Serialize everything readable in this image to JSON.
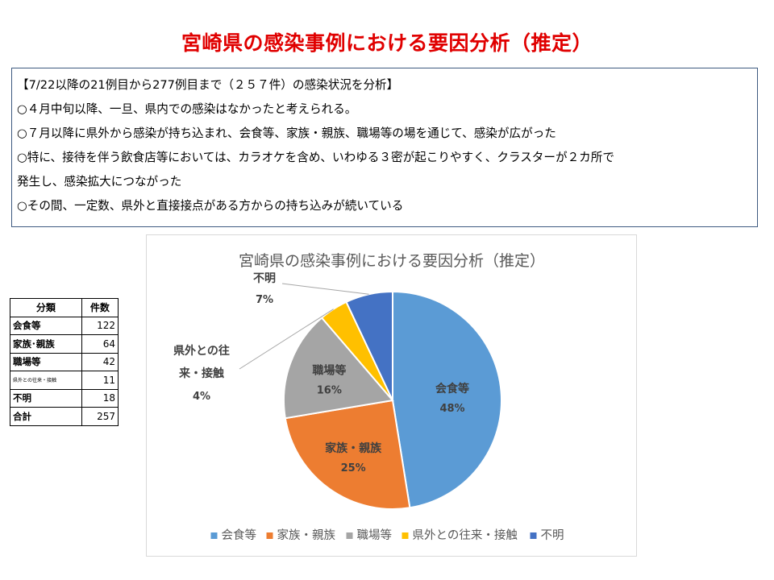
{
  "slide": {
    "title": "宮崎県の感染事例における要因分析（推定）"
  },
  "summary": {
    "lines": [
      "【7/22以降の21例目から277例目まで（２５７件）の感染状況を分析】",
      "○４月中旬以降、一旦、県内での感染はなかったと考えられる。",
      "○７月以降に県外から感染が持ち込まれ、会食等、家族・親族、職場等の場を通じて、感染が広がった",
      "○特に、接待を伴う飲食店等においては、カラオケを含め、いわゆる３密が起こりやすく、クラスターが２カ所で",
      "発生し、感染拡大につながった",
      "○その間、一定数、県外と直接接点がある方からの持ち込みが続いている"
    ]
  },
  "table": {
    "headers": [
      "分類",
      "件数"
    ],
    "rows": [
      {
        "category": "会食等",
        "count": "122"
      },
      {
        "category": "家族･親族",
        "count": "64"
      },
      {
        "category": "職場等",
        "count": "42"
      },
      {
        "category": "県外との往来・接触",
        "count": "11"
      },
      {
        "category": "不明",
        "count": "18"
      },
      {
        "category": "合計",
        "count": "257"
      }
    ]
  },
  "chart_data": {
    "type": "pie",
    "title": "宮崎県の感染事例における要因分析（推定）",
    "legend_position": "bottom",
    "slices": [
      {
        "name": "会食等",
        "value": 122,
        "label": "会食等",
        "percent": "48%",
        "color": "#5b9bd5"
      },
      {
        "name": "家族・親族",
        "value": 64,
        "label": "家族・親族",
        "percent": "25%",
        "color": "#ed7d31"
      },
      {
        "name": "職場等",
        "value": 42,
        "label": "職場等",
        "percent": "16%",
        "color": "#a5a5a5"
      },
      {
        "name": "県外との往来・接触",
        "value": 11,
        "label_lines": [
          "県外との往",
          "来・接触"
        ],
        "percent": "4%",
        "color": "#ffc000"
      },
      {
        "name": "不明",
        "value": 18,
        "label": "不明",
        "percent": "7%",
        "color": "#4472c4"
      }
    ]
  }
}
